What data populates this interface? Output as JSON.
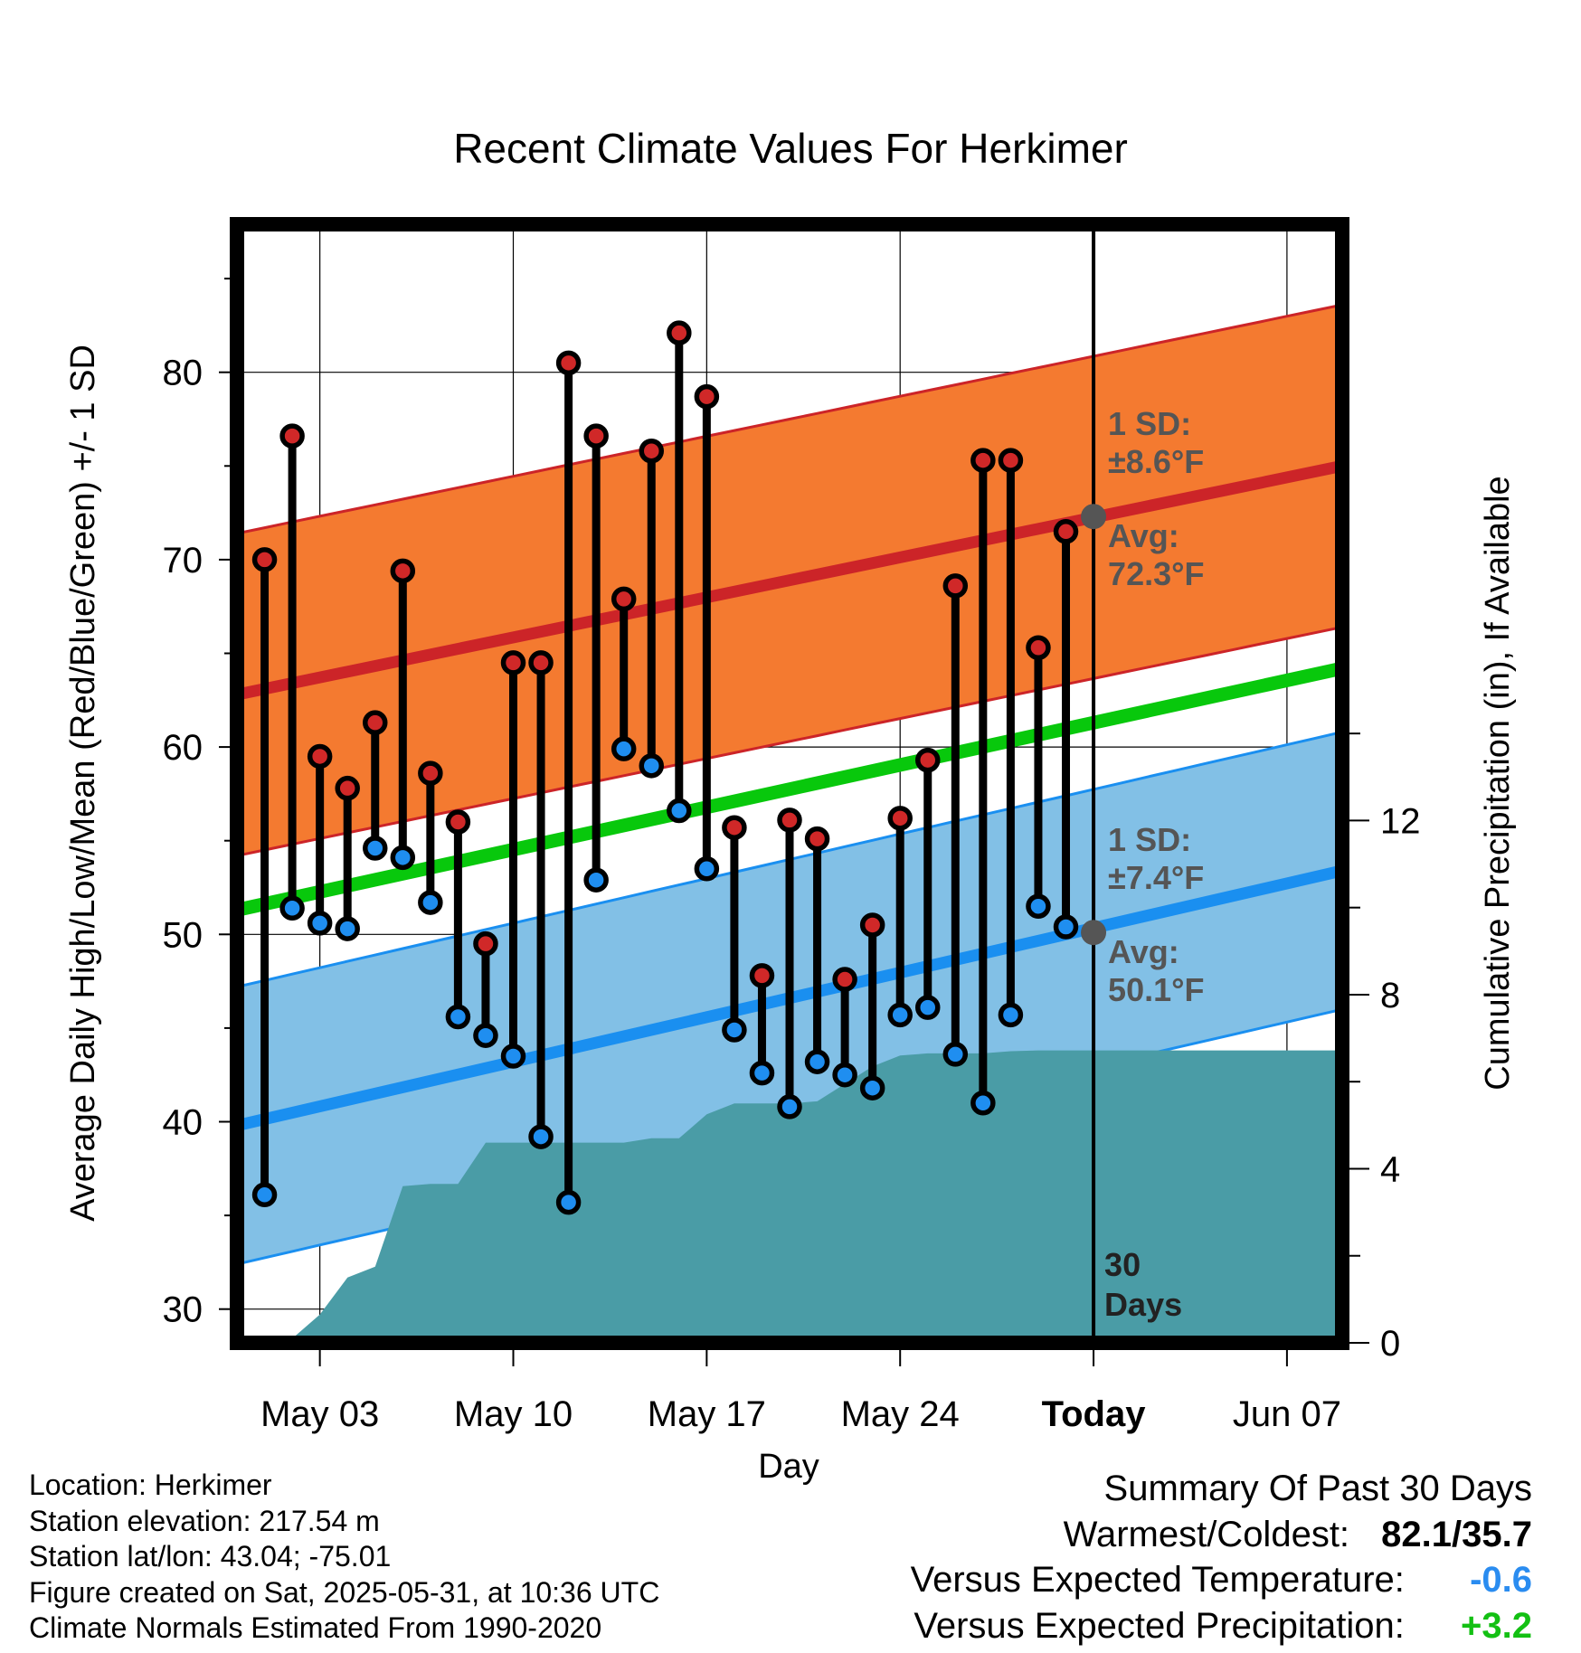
{
  "chart_data": {
    "type": "line",
    "title": "Recent Climate Values For Herkimer",
    "xlabel": "Day",
    "ylabel": "Average Daily High/Low/Mean (Red/Blue/Green) +/- 1 SD",
    "y2label": "Cumulative Precipitation (in), If Available",
    "ylim": [
      28.2,
      87.9
    ],
    "y2lim": [
      0,
      25.7
    ],
    "yticks": [
      "30",
      "40",
      "50",
      "60",
      "70",
      "80"
    ],
    "y2ticks": [
      "0",
      "4",
      "8",
      "12"
    ],
    "x_day_range": [
      0,
      40
    ],
    "xticks": [
      {
        "day": 3,
        "label": "May 03"
      },
      {
        "day": 10,
        "label": "May 10"
      },
      {
        "day": 17,
        "label": "May 17"
      },
      {
        "day": 24,
        "label": "May 24"
      },
      {
        "day": 31,
        "label": "Today"
      },
      {
        "day": 38,
        "label": "Jun 07"
      }
    ],
    "today_day": 31,
    "highs": [
      70.0,
      76.6,
      59.5,
      57.8,
      61.3,
      69.4,
      58.6,
      56.0,
      49.5,
      64.5,
      64.5,
      80.5,
      76.6,
      67.9,
      75.8,
      82.1,
      78.7,
      55.7,
      47.8,
      56.1,
      55.1,
      47.6,
      50.5,
      56.2,
      59.3,
      68.6,
      75.3,
      75.3,
      65.3,
      71.5
    ],
    "lows": [
      36.1,
      51.4,
      50.6,
      50.3,
      54.6,
      54.1,
      51.7,
      45.6,
      44.6,
      43.5,
      39.2,
      35.7,
      52.9,
      59.9,
      59.0,
      56.6,
      53.5,
      44.9,
      42.6,
      40.8,
      43.2,
      42.5,
      41.8,
      45.7,
      46.1,
      43.6,
      41.0,
      45.7,
      51.5,
      50.4
    ],
    "normal_high": {
      "start": 62.8,
      "end": 75.0
    },
    "normal_low": {
      "start": 39.8,
      "end": 53.4
    },
    "normal_mean": {
      "start": 51.3,
      "end": 64.2
    },
    "sd_high": 8.6,
    "sd_low": 7.4,
    "cum_precip_days": [
      1,
      2,
      3,
      4,
      5,
      6,
      7,
      8,
      9,
      10,
      11,
      12,
      13,
      14,
      15,
      16,
      17,
      18,
      19,
      20,
      21,
      22,
      23,
      24,
      25,
      26,
      27,
      28,
      29,
      30,
      31,
      40
    ],
    "cum_precip": [
      0.0,
      0.1,
      0.65,
      1.5,
      1.75,
      3.6,
      3.65,
      3.65,
      4.6,
      4.6,
      4.6,
      4.6,
      4.6,
      4.6,
      4.7,
      4.7,
      5.25,
      5.5,
      5.5,
      5.5,
      5.55,
      5.95,
      6.35,
      6.6,
      6.65,
      6.65,
      6.65,
      6.7,
      6.72,
      6.72,
      6.72,
      6.72
    ],
    "annotations": {
      "high_sd_label": "1 SD:",
      "high_sd_value": "±8.6°F",
      "high_avg_label": "Avg:",
      "high_avg_value": "72.3°F",
      "low_sd_label": "1 SD:",
      "low_sd_value": "±7.4°F",
      "low_avg_label": "Avg:",
      "low_avg_value": "50.1°F",
      "today_avg_high": 72.3,
      "today_avg_low": 50.1,
      "days_line1": "30",
      "days_line2": "Days"
    },
    "colors": {
      "high_band": "#f47a30",
      "high_line": "#cc2428",
      "low_band": "#82c0e6",
      "low_line": "#1a8ff0",
      "mean_line": "#08c80c",
      "precip": "#4a9ca6",
      "annotation": "#555555"
    }
  },
  "info": {
    "location": "Location: Herkimer",
    "elevation": "Station elevation: 217.54 m",
    "latlon": "Station lat/lon: 43.04; -75.01",
    "created": "Figure created on Sat, 2025-05-31, at 10:36 UTC",
    "normals": "Climate Normals Estimated From 1990-2020"
  },
  "summary": {
    "title": "Summary Of Past 30 Days",
    "warm_cold_label": "Warmest/Coldest:",
    "warm_cold_value": "82.1/35.7",
    "temp_label": "Versus Expected Temperature:",
    "temp_value": "-0.6",
    "temp_color": "#2a8cf0",
    "precip_label": "Versus Expected Precipitation:",
    "precip_value": "+3.2",
    "precip_color": "#13c013"
  }
}
